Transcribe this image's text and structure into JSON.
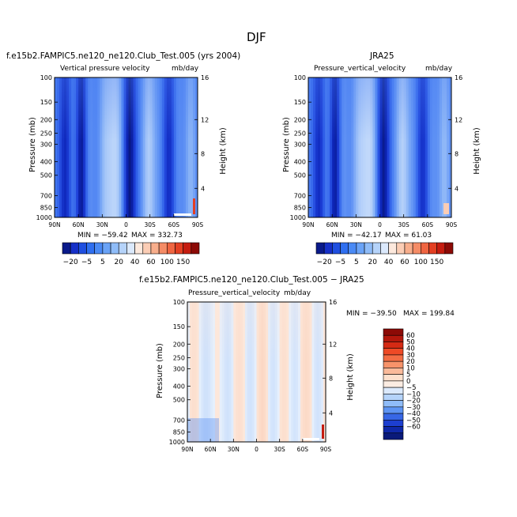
{
  "title": "DJF",
  "panels": [
    {
      "id": "model",
      "case_title": "f.e15b2.FAMPIC5.ne120_ne120.Club_Test.005 (yrs 2004)",
      "left_label": "Vertical  pressure  velocity",
      "units": "mb/day",
      "ylabel": "Pressure  (mb)",
      "y2label": "Height  (km)",
      "yticks": [
        "100",
        "150",
        "200",
        "250",
        "300",
        "400",
        "500",
        "700",
        "850",
        "1000"
      ],
      "xticks": [
        "90N",
        "60N",
        "30N",
        "0",
        "30S",
        "60S",
        "90S"
      ],
      "heightticks": [
        "16",
        "12",
        "8",
        "4"
      ],
      "min_label": "MIN = −59.42",
      "max_label": "MAX = 332.73",
      "min": -59.42,
      "max": 332.73
    },
    {
      "id": "obs",
      "case_title": "JRA25",
      "left_label": "Pressure_vertical_velocity",
      "units": "mb/day",
      "ylabel": "Pressure  (mb)",
      "y2label": "Height  (km)",
      "yticks": [
        "100",
        "150",
        "200",
        "250",
        "300",
        "400",
        "500",
        "700",
        "850",
        "1000"
      ],
      "xticks": [
        "90N",
        "60N",
        "30N",
        "0",
        "30S",
        "60S",
        "90S"
      ],
      "heightticks": [
        "16",
        "12",
        "8",
        "4"
      ],
      "min_label": "MIN = −42.17",
      "max_label": "MAX =   61.03",
      "min": -42.17,
      "max": 61.03
    },
    {
      "id": "diff",
      "case_title": "f.e15b2.FAMPIC5.ne120_ne120.Club_Test.005 − JRA25",
      "left_label": "Pressure_vertical_velocity",
      "units": "mb/day",
      "ylabel": "Pressure  (mb)",
      "y2label": "Height  (km)",
      "yticks": [
        "100",
        "150",
        "200",
        "250",
        "300",
        "400",
        "500",
        "700",
        "850",
        "1000"
      ],
      "xticks": [
        "90N",
        "60N",
        "30N",
        "0",
        "30S",
        "60S",
        "90S"
      ],
      "heightticks": [
        "16",
        "12",
        "8",
        "4"
      ],
      "min_label": "MIN = −39.50",
      "max_label": "MAX = 199.84",
      "min": -39.5,
      "max": 199.84
    }
  ],
  "colorbar_horizontal": {
    "labels": [
      "−20",
      "−5",
      "5",
      "20",
      "40",
      "60",
      "100",
      "150"
    ],
    "colors": [
      "#0a1a8a",
      "#1630c8",
      "#1f4fe0",
      "#2f6ff0",
      "#4a8af5",
      "#6aa3f7",
      "#8fbcf8",
      "#b5d3fa",
      "#dbe9fc",
      "#fde9dd",
      "#fbcdb5",
      "#f8ae8c",
      "#f58c66",
      "#ef6541",
      "#e33f22",
      "#c51c10",
      "#8c0a06"
    ]
  },
  "colorbar_vertical": {
    "labels": [
      "60",
      "50",
      "40",
      "30",
      "20",
      "10",
      "5",
      "0",
      "−5",
      "−10",
      "−20",
      "−30",
      "−40",
      "−50",
      "−60"
    ],
    "colors": [
      "#8c0a06",
      "#b3170c",
      "#d52a14",
      "#ee4a26",
      "#f36d44",
      "#f7936a",
      "#faba9a",
      "#fde0cc",
      "#fbece2",
      "#dbe9fc",
      "#b5d3fa",
      "#8fbcf8",
      "#5e95f3",
      "#3767e6",
      "#1d3fd0",
      "#0f28a8",
      "#0a1a7a"
    ]
  },
  "chart_data": [
    {
      "type": "heatmap",
      "title": "f.e15b2.FAMPIC5.ne120_ne120.Club_Test.005 (yrs 2004)",
      "ylabel": "Pressure  (mb)",
      "x": [
        "90N",
        "60N",
        "30N",
        "0",
        "30S",
        "60S",
        "90S"
      ],
      "y": [
        100,
        150,
        200,
        250,
        300,
        400,
        500,
        700,
        850,
        1000
      ],
      "y_scale": "log",
      "ylim": [
        1000,
        100
      ],
      "min": -59.42,
      "max": 332.73,
      "levels": [
        -20,
        -5,
        5,
        20,
        40,
        60,
        100,
        150
      ]
    },
    {
      "type": "heatmap",
      "title": "JRA25",
      "ylabel": "Pressure  (mb)",
      "x": [
        "90N",
        "60N",
        "30N",
        "0",
        "30S",
        "60S",
        "90S"
      ],
      "y": [
        100,
        150,
        200,
        250,
        300,
        400,
        500,
        700,
        850,
        1000
      ],
      "y_scale": "log",
      "ylim": [
        1000,
        100
      ],
      "min": -42.17,
      "max": 61.03,
      "levels": [
        -20,
        -5,
        5,
        20,
        40,
        60,
        100,
        150
      ]
    },
    {
      "type": "heatmap",
      "title": "f.e15b2.FAMPIC5.ne120_ne120.Club_Test.005 − JRA25",
      "ylabel": "Pressure  (mb)",
      "x": [
        "90N",
        "60N",
        "30N",
        "0",
        "30S",
        "60S",
        "90S"
      ],
      "y": [
        100,
        150,
        200,
        250,
        300,
        400,
        500,
        700,
        850,
        1000
      ],
      "y_scale": "log",
      "ylim": [
        1000,
        100
      ],
      "min": -39.5,
      "max": 199.84,
      "levels": [
        -60,
        -50,
        -40,
        -30,
        -20,
        -10,
        -5,
        0,
        5,
        10,
        20,
        30,
        40,
        50,
        60
      ]
    }
  ]
}
